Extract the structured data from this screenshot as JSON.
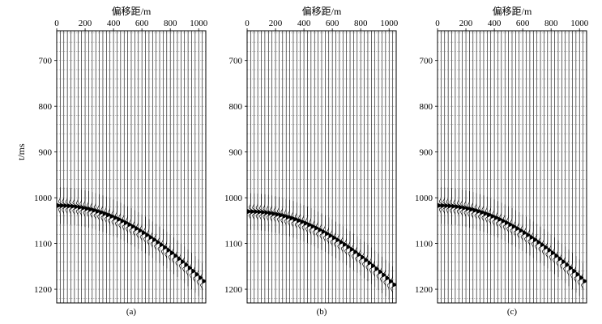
{
  "chart_data": [
    {
      "type": "seismic-wiggle",
      "panel_label": "(a)",
      "xlabel": "偏移距/m",
      "ylabel": "t/ms",
      "show_ylabel": true,
      "xlim": [
        0,
        1050
      ],
      "ylim": [
        635,
        1230
      ],
      "xticks": [
        0,
        200,
        400,
        600,
        800,
        1000
      ],
      "yticks": [
        700,
        800,
        900,
        1000,
        1100,
        1200
      ],
      "trace_offsets_start": 0,
      "trace_offsets_step": 25,
      "trace_count": 42,
      "event": {
        "t0": 1017,
        "velocity": 3400
      },
      "grid": true
    },
    {
      "type": "seismic-wiggle",
      "panel_label": "(b)",
      "xlabel": "偏移距/m",
      "ylabel": "t/ms",
      "show_ylabel": false,
      "xlim": [
        0,
        1050
      ],
      "ylim": [
        635,
        1230
      ],
      "xticks": [
        0,
        200,
        400,
        600,
        800,
        1000
      ],
      "yticks": [
        700,
        800,
        900,
        1000,
        1100,
        1200
      ],
      "trace_offsets_start": 0,
      "trace_offsets_step": 25,
      "trace_count": 42,
      "event": {
        "t0": 1030,
        "velocity": 3440
      },
      "grid": true
    },
    {
      "type": "seismic-wiggle",
      "panel_label": "(c)",
      "xlabel": "偏移距/m",
      "ylabel": "t/ms",
      "show_ylabel": false,
      "xlim": [
        0,
        1050
      ],
      "ylim": [
        635,
        1230
      ],
      "xticks": [
        0,
        200,
        400,
        600,
        800,
        1000
      ],
      "yticks": [
        700,
        800,
        900,
        1000,
        1100,
        1200
      ],
      "trace_offsets_start": 0,
      "trace_offsets_step": 25,
      "trace_count": 42,
      "event": {
        "t0": 1017,
        "velocity": 3400
      },
      "grid": true
    }
  ]
}
